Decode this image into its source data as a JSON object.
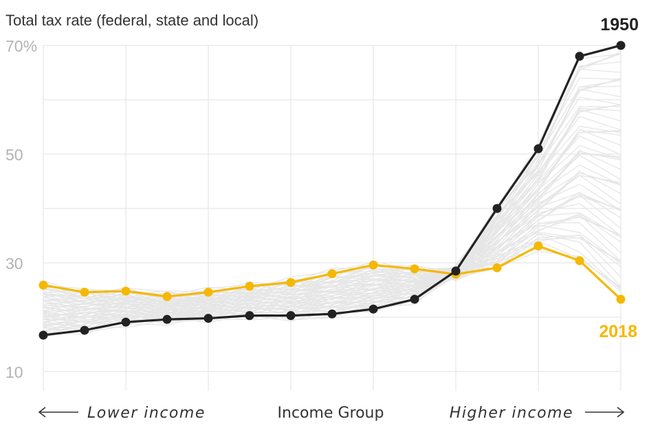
{
  "chart_data": {
    "type": "line",
    "title": "Total tax rate (federal, state and local)",
    "xlabel": "Income Group",
    "x_left_label": "Lower income",
    "x_right_label": "Higher income",
    "ylim": [
      10,
      70
    ],
    "yticks": [
      {
        "value": 70,
        "label": "70%"
      },
      {
        "value": 50,
        "label": "50"
      },
      {
        "value": 30,
        "label": "30"
      },
      {
        "value": 10,
        "label": "10"
      }
    ],
    "ygrid": [
      10,
      20,
      30,
      40,
      50,
      60,
      70
    ],
    "x": [
      1,
      2,
      3,
      4,
      5,
      6,
      7,
      8,
      9,
      10,
      11,
      12,
      13,
      14,
      15
    ],
    "series": [
      {
        "name": "1950",
        "color": "#222222",
        "values": [
          16.7,
          17.6,
          19.1,
          19.6,
          19.8,
          20.3,
          20.3,
          20.6,
          21.5,
          23.3,
          28.5,
          40.0,
          51.0,
          68.0,
          70.0
        ]
      },
      {
        "name": "2018",
        "color": "#f5b800",
        "values": [
          25.9,
          24.6,
          24.8,
          23.8,
          24.6,
          25.7,
          26.4,
          28.0,
          29.6,
          28.9,
          27.9,
          29.1,
          33.1,
          30.4,
          23.3
        ]
      }
    ],
    "background_series_color": "#e6e6e6",
    "grid": true
  }
}
